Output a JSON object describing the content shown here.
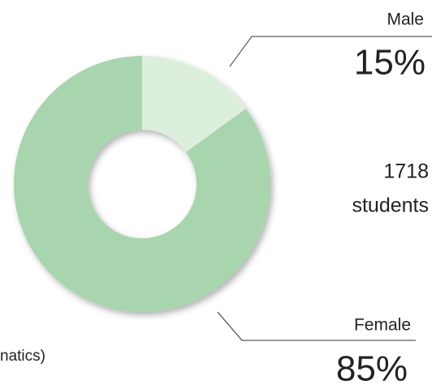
{
  "chart_data": {
    "type": "donut",
    "categories": [
      "Male",
      "Female"
    ],
    "values": [
      15,
      85
    ],
    "value_labels": [
      "15%",
      "85%"
    ],
    "colors": [
      "#dcefdc",
      "#a8d5ae"
    ],
    "total_label": [
      "1718",
      "students"
    ],
    "caption": "natics)"
  }
}
